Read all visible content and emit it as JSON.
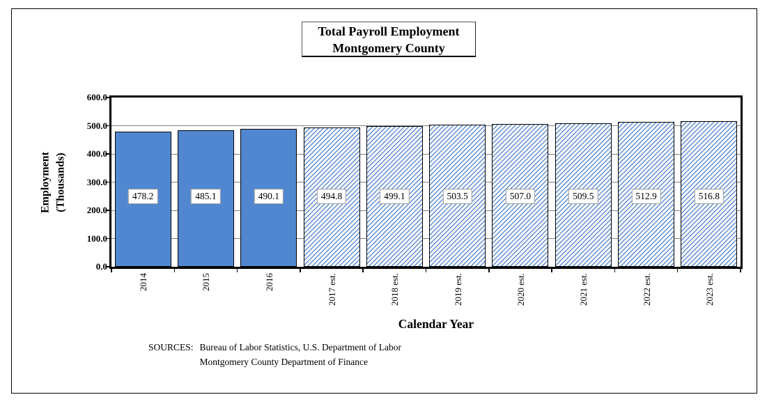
{
  "page": {
    "background": "#ffffff"
  },
  "chart_data": {
    "type": "bar",
    "title_lines": [
      "Total Payroll Employment",
      "Montgomery County"
    ],
    "categories": [
      "2014",
      "2015",
      "2016",
      "2017 est.",
      "2018 est.",
      "2019 est.",
      "2020 est.",
      "2021 est.",
      "2022 est.",
      "2023 est."
    ],
    "values": [
      478.2,
      485.1,
      490.1,
      494.8,
      499.1,
      503.5,
      507.0,
      509.5,
      512.9,
      516.8
    ],
    "value_labels": [
      "478.2",
      "485.1",
      "490.1",
      "494.8",
      "499.1",
      "503.5",
      "507.0",
      "509.5",
      "512.9",
      "516.8"
    ],
    "bar_patterns": [
      "solid",
      "solid",
      "solid",
      "hatch",
      "hatch",
      "hatch",
      "hatch",
      "hatch",
      "hatch",
      "hatch"
    ],
    "xlabel": "Calendar Year",
    "ylabel_lines": [
      "Employment",
      "(Thousands)"
    ],
    "ylim": [
      0,
      600
    ],
    "ytick_interval": 100,
    "ytick_labels": [
      "600.0",
      "500.0",
      "400.0",
      "300.0",
      "200.0",
      "100.0",
      "0.0"
    ],
    "grid": true,
    "legend": "none",
    "colors": {
      "bar_fill": "#5187d0",
      "hatch_stripe": "#5b8cd6",
      "hatch_bg": "#ffffff",
      "bar_border": "#000000",
      "gridline": "#808080",
      "axis_frame": "#000000",
      "value_label_bg": "#ffffff",
      "value_label_border": "#999999"
    }
  },
  "footer": {
    "sources_label": "SOURCES:",
    "sources_lines": [
      "Bureau of Labor Statistics, U.S. Department of Labor",
      "Montgomery County Department of Finance"
    ]
  }
}
